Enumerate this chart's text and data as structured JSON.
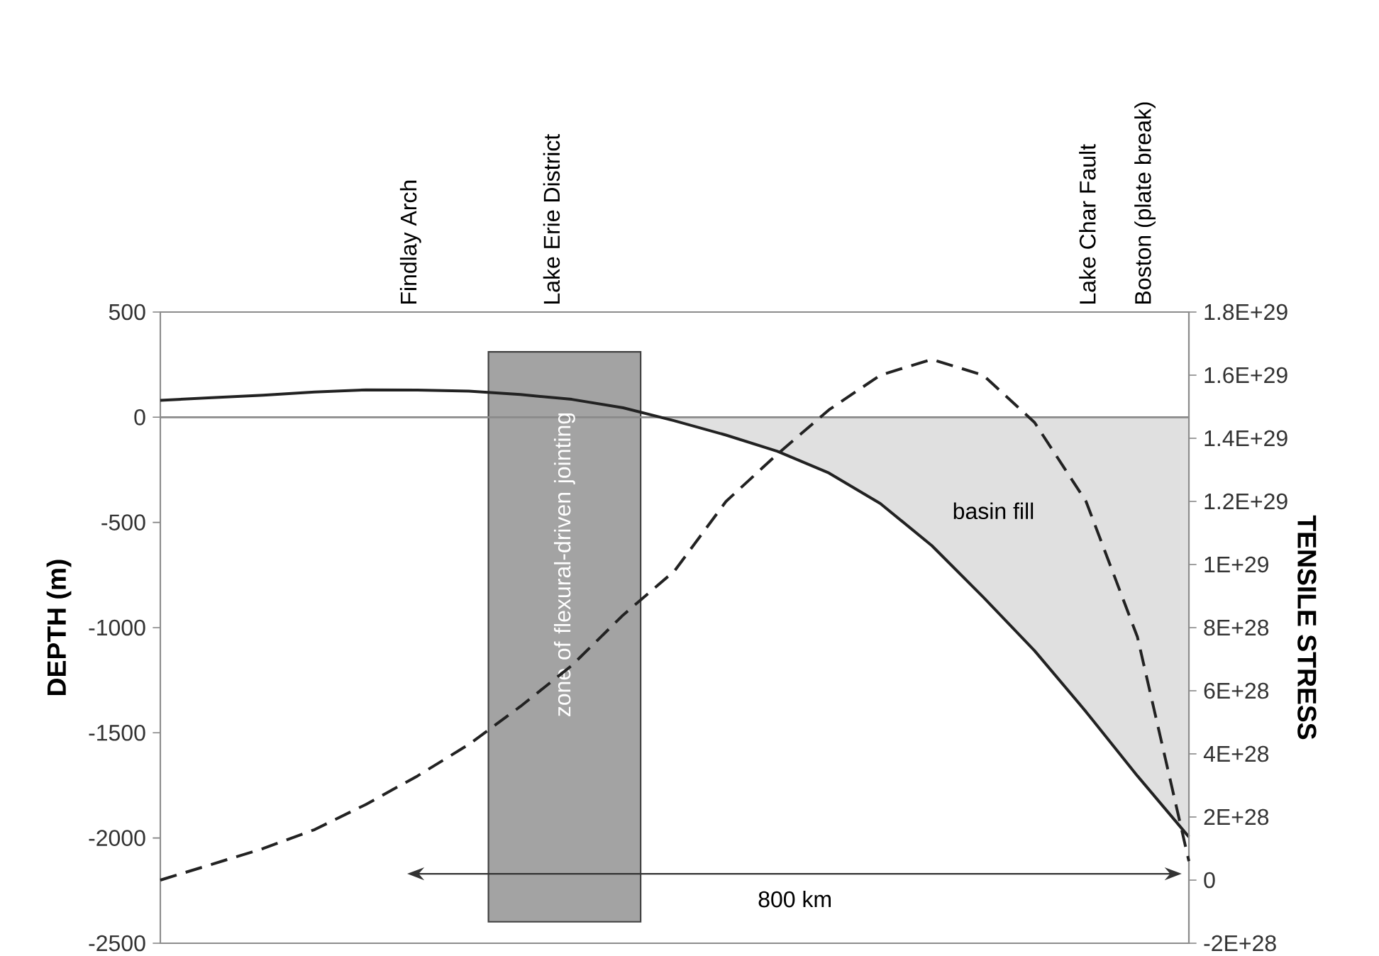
{
  "chart_data": {
    "type": "line",
    "ylabel": "DEPTH (m)",
    "y2label": "TENSILE STRESS",
    "categories": [
      null,
      null,
      null,
      null,
      null,
      null,
      null,
      null,
      null,
      null,
      null,
      null,
      null,
      null,
      null,
      null,
      null,
      null,
      null,
      null,
      null
    ],
    "ylim": [
      -2500,
      500
    ],
    "yticks": [
      -2500,
      -2000,
      -1500,
      -1000,
      -500,
      0,
      500
    ],
    "y2lim": [
      -2e+28,
      1.8e+29
    ],
    "y2ticks": [
      {
        "value": -2e+28,
        "label": "-2E+28"
      },
      0,
      {
        "value": 2e+28,
        "label": "2E+28"
      },
      {
        "value": 4e+28,
        "label": "4E+28"
      },
      {
        "value": 6e+28,
        "label": "6E+28"
      },
      {
        "value": 8e+28,
        "label": "8E+28"
      },
      {
        "value": 1e+29,
        "label": "1E+29"
      },
      {
        "value": 1.2e+29,
        "label": "1.2E+29"
      },
      {
        "value": 1.4e+29,
        "label": "1.4E+29"
      },
      {
        "value": 1.6e+29,
        "label": "1.6E+29"
      },
      {
        "value": 1.8e+29,
        "label": "1.8E+29"
      }
    ],
    "marker": "none",
    "series": [
      {
        "color": "#222222",
        "line_style": "solid",
        "values": [
          80,
          93,
          105,
          120,
          130,
          129,
          124,
          108,
          85,
          45,
          -17,
          -85,
          -162,
          -265,
          -410,
          -610,
          -855,
          -1110,
          -1400,
          -1705,
          -1995
        ]
      },
      {
        "axis": "y2",
        "color": "#222222",
        "line_style": "dashed",
        "values": [
          0,
          5e+27,
          1e+28,
          1.6e+28,
          2.4e+28,
          3.3e+28,
          4.3e+28,
          5.5e+28,
          6.8e+28,
          8.4e+28,
          9.8e+28,
          1.2e+29,
          1.35e+29,
          1.49e+29,
          1.6e+29,
          1.65e+29,
          1.6e+29,
          1.45e+29,
          1.2e+29,
          7.7e+28,
          6e+27
        ]
      }
    ],
    "ref_lines": [
      {
        "axis": "y",
        "value": 0,
        "color": "#8a8a8a"
      }
    ],
    "annotations": [
      "basin fill",
      "Findlay Arch",
      "Lake Erie District",
      "Lake Char Fault",
      "Boston (plate break)",
      "800 km",
      "zone of flexural-driven jointing"
    ]
  }
}
